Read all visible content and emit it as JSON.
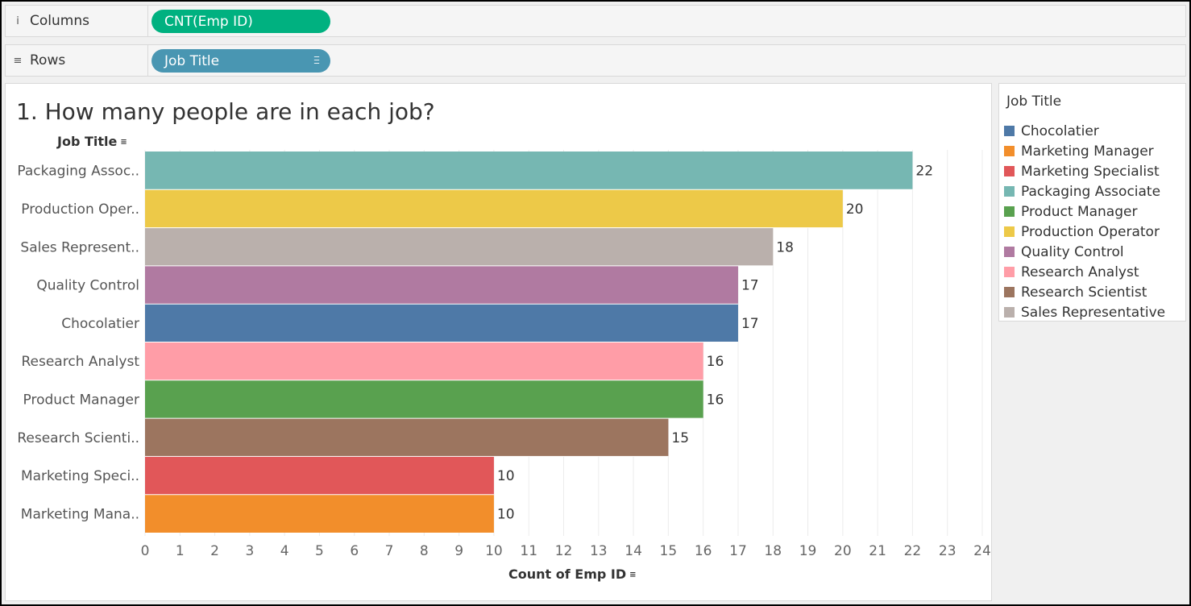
{
  "shelves": {
    "columns": {
      "label": "Columns",
      "icon": "columns-icon",
      "pill": "CNT(Emp ID)",
      "pill_color": "#00b180"
    },
    "rows": {
      "label": "Rows",
      "icon": "rows-icon",
      "pill": "Job Title",
      "pill_color": "#4996b2"
    }
  },
  "legend": {
    "title": "Job Title",
    "items": [
      {
        "label": "Chocolatier",
        "color": "#4e79a7"
      },
      {
        "label": "Marketing Manager",
        "color": "#f28e2b"
      },
      {
        "label": "Marketing Specialist",
        "color": "#e15759"
      },
      {
        "label": "Packaging Associate",
        "color": "#76b7b2"
      },
      {
        "label": "Product Manager",
        "color": "#59a14f"
      },
      {
        "label": "Production Operator",
        "color": "#edc948"
      },
      {
        "label": "Quality Control",
        "color": "#b07aa1"
      },
      {
        "label": "Research Analyst",
        "color": "#ff9da7"
      },
      {
        "label": "Research Scientist",
        "color": "#9c755f"
      },
      {
        "label": "Sales Representative",
        "color": "#bab0ac"
      }
    ]
  },
  "chart_data": {
    "type": "bar",
    "orientation": "horizontal",
    "title": "1. How many people are in each job?",
    "ylabel": "Job Title",
    "xlabel": "Count of Emp ID",
    "categories": [
      "Packaging Assoc..",
      "Production Oper..",
      "Sales Represent..",
      "Quality Control",
      "Chocolatier",
      "Research Analyst",
      "Product Manager",
      "Research Scienti..",
      "Marketing Speci..",
      "Marketing Mana.."
    ],
    "values": [
      22,
      20,
      18,
      17,
      17,
      16,
      16,
      15,
      10,
      10
    ],
    "colors": [
      "#76b7b2",
      "#edc948",
      "#bab0ac",
      "#b07aa1",
      "#4e79a7",
      "#ff9da7",
      "#59a14f",
      "#9c755f",
      "#e15759",
      "#f28e2b"
    ],
    "xlim": [
      0,
      24
    ],
    "xticks": [
      0,
      1,
      2,
      3,
      4,
      5,
      6,
      7,
      8,
      9,
      10,
      11,
      12,
      13,
      14,
      15,
      16,
      17,
      18,
      19,
      20,
      21,
      22,
      23,
      24
    ],
    "data_labels": true,
    "grid": "vertical"
  }
}
